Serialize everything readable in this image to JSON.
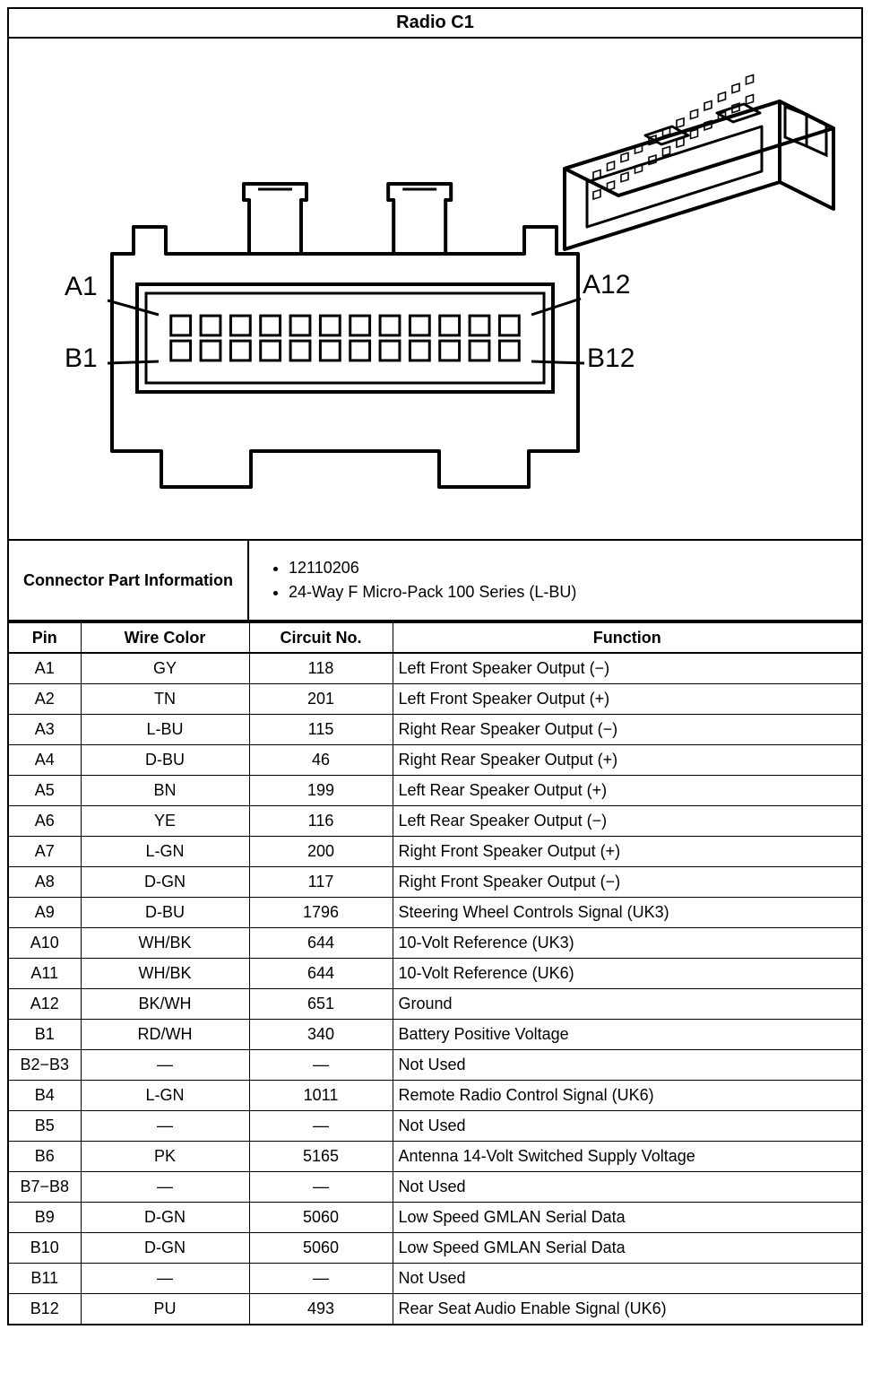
{
  "title": "Radio C1",
  "diagram": {
    "labels": {
      "a1": "A1",
      "a12": "A12",
      "b1": "B1",
      "b12": "B12"
    },
    "rows": 2,
    "cols": 12,
    "stroke": "#000000",
    "stroke_width_main": 4,
    "stroke_width_pin": 3,
    "background": "#ffffff"
  },
  "connector_info": {
    "label": "Connector Part Information",
    "items": [
      "12110206",
      "24-Way F Micro-Pack 100 Series (L-BU)"
    ]
  },
  "table": {
    "columns": [
      "Pin",
      "Wire Color",
      "Circuit No.",
      "Function"
    ],
    "rows": [
      {
        "pin": "A1",
        "wire": "GY",
        "circuit": "118",
        "func": "Left Front Speaker Output (−)"
      },
      {
        "pin": "A2",
        "wire": "TN",
        "circuit": "201",
        "func": "Left Front Speaker Output (+)"
      },
      {
        "pin": "A3",
        "wire": "L-BU",
        "circuit": "115",
        "func": "Right Rear Speaker Output (−)"
      },
      {
        "pin": "A4",
        "wire": "D-BU",
        "circuit": "46",
        "func": "Right Rear Speaker Output (+)"
      },
      {
        "pin": "A5",
        "wire": "BN",
        "circuit": "199",
        "func": "Left Rear Speaker Output (+)"
      },
      {
        "pin": "A6",
        "wire": "YE",
        "circuit": "116",
        "func": "Left Rear Speaker Output (−)"
      },
      {
        "pin": "A7",
        "wire": "L-GN",
        "circuit": "200",
        "func": "Right Front Speaker Output (+)"
      },
      {
        "pin": "A8",
        "wire": "D-GN",
        "circuit": "117",
        "func": "Right Front Speaker Output (−)"
      },
      {
        "pin": "A9",
        "wire": "D-BU",
        "circuit": "1796",
        "func": "Steering Wheel Controls Signal (UK3)"
      },
      {
        "pin": "A10",
        "wire": "WH/BK",
        "circuit": "644",
        "func": "10-Volt Reference (UK3)"
      },
      {
        "pin": "A11",
        "wire": "WH/BK",
        "circuit": "644",
        "func": "10-Volt Reference (UK6)"
      },
      {
        "pin": "A12",
        "wire": "BK/WH",
        "circuit": "651",
        "func": "Ground"
      },
      {
        "pin": "B1",
        "wire": "RD/WH",
        "circuit": "340",
        "func": "Battery Positive Voltage"
      },
      {
        "pin": "B2−B3",
        "wire": "—",
        "circuit": "—",
        "func": "Not Used"
      },
      {
        "pin": "B4",
        "wire": "L-GN",
        "circuit": "1011",
        "func": "Remote Radio Control Signal (UK6)"
      },
      {
        "pin": "B5",
        "wire": "—",
        "circuit": "—",
        "func": "Not Used"
      },
      {
        "pin": "B6",
        "wire": "PK",
        "circuit": "5165",
        "func": "Antenna 14-Volt Switched Supply Voltage"
      },
      {
        "pin": "B7−B8",
        "wire": "—",
        "circuit": "—",
        "func": "Not Used"
      },
      {
        "pin": "B9",
        "wire": "D-GN",
        "circuit": "5060",
        "func": "Low Speed GMLAN Serial Data"
      },
      {
        "pin": "B10",
        "wire": "D-GN",
        "circuit": "5060",
        "func": "Low Speed GMLAN Serial Data"
      },
      {
        "pin": "B11",
        "wire": "—",
        "circuit": "—",
        "func": "Not Used"
      },
      {
        "pin": "B12",
        "wire": "PU",
        "circuit": "493",
        "func": "Rear Seat Audio Enable Signal (UK6)"
      }
    ]
  }
}
